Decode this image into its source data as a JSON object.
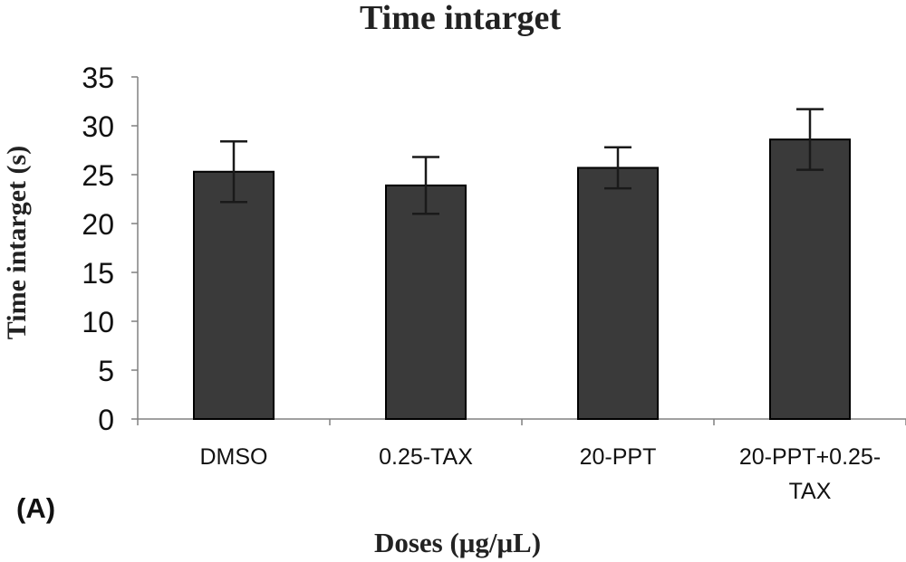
{
  "chart_data": {
    "type": "bar",
    "title": "Time intarget",
    "xlabel": "Doses (μg/μL)",
    "ylabel": "Time intarget (s)",
    "panel_label": "(A)",
    "categories": [
      [
        "DMSO"
      ],
      [
        "0.25-TAX"
      ],
      [
        "20-PPT"
      ],
      [
        "20-PPT+0.25-",
        "TAX"
      ]
    ],
    "values": [
      25.3,
      23.9,
      25.7,
      28.6
    ],
    "error": [
      3.1,
      2.9,
      2.1,
      3.1
    ],
    "ylim": [
      0,
      35
    ],
    "yticks": [
      0,
      5,
      10,
      15,
      20,
      25,
      30,
      35
    ],
    "grid": false,
    "colors": {
      "bar": "#3a3a3a",
      "stroke": "#000000",
      "axis": "#808080"
    }
  }
}
